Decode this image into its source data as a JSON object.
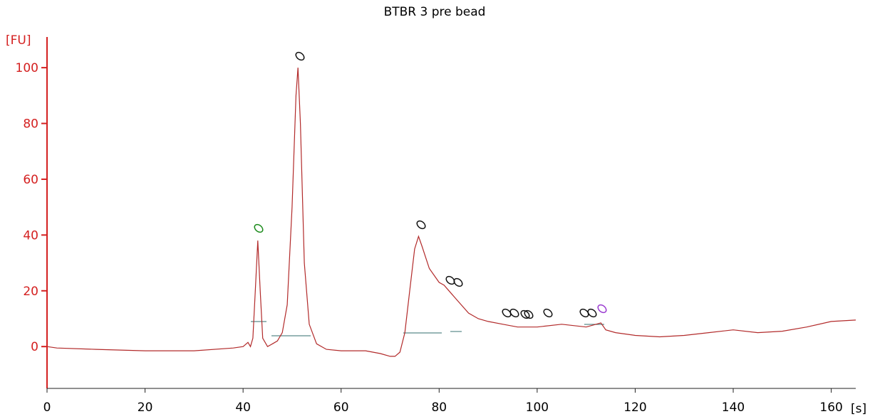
{
  "chart_data": {
    "type": "line",
    "title": "BTBR 3 pre bead",
    "y_label": "[FU]",
    "x_label": "[s]",
    "color": "#b22a2a",
    "axis_color": "#d42020",
    "xlim": [
      0,
      165
    ],
    "ylim": [
      -15,
      111
    ],
    "xticks": [
      0,
      20,
      40,
      60,
      80,
      100,
      120,
      140,
      160
    ],
    "yticks": [
      0,
      20,
      40,
      60,
      80,
      100
    ],
    "x": [
      0,
      2,
      10,
      20,
      30,
      38,
      40,
      41,
      41.5,
      42,
      42.5,
      43,
      43.5,
      44,
      45,
      46,
      47,
      48,
      49,
      50,
      50.8,
      51.2,
      51.7,
      52.5,
      53.5,
      55,
      57,
      60,
      65,
      68,
      70,
      71,
      72,
      73,
      74,
      75,
      75.8,
      76.5,
      78,
      80,
      81,
      82,
      83,
      84,
      86,
      88,
      90,
      93,
      96,
      100,
      105,
      110,
      113,
      114,
      116,
      120,
      125,
      130,
      135,
      140,
      145,
      150,
      155,
      160,
      165
    ],
    "values": [
      0,
      -0.5,
      -1,
      -1.5,
      -1.5,
      -0.5,
      0,
      1.5,
      0,
      3,
      20,
      38,
      20,
      3,
      0,
      1,
      2,
      5,
      15,
      50,
      90,
      100,
      80,
      30,
      8,
      1,
      -1,
      -1.5,
      -1.5,
      -2.5,
      -3.5,
      -3.5,
      -2,
      5,
      20,
      35,
      39.5,
      36,
      28,
      23,
      22,
      20,
      18,
      16,
      12,
      10,
      9,
      8,
      7,
      7,
      8,
      7,
      8.5,
      6,
      5,
      4,
      3.5,
      4,
      5,
      6,
      5,
      5.5,
      7,
      9,
      9.5
    ]
  }
}
